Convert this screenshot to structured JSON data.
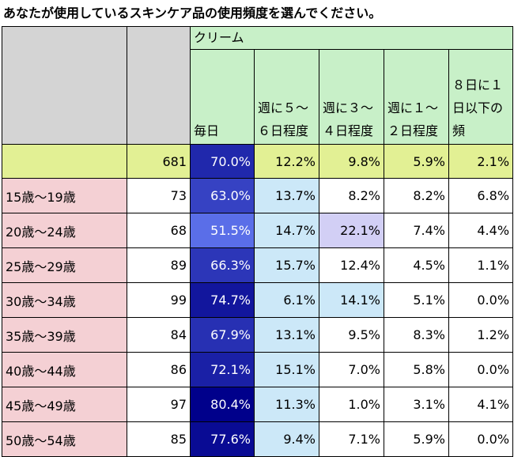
{
  "title": "あなたが使用しているスキンケア品の使用頻度を選んでください。",
  "group_header": "クリーム",
  "columns": [
    "毎日",
    "週に５～６日程度",
    "週に３～４日程度",
    "週に１～２日程度",
    "８日に１日以下の頻"
  ],
  "total": {
    "n": "681",
    "values": [
      "70.0%",
      "12.2%",
      "9.8%",
      "5.9%",
      "2.1%"
    ]
  },
  "rows": [
    {
      "label": "15歳～19歳",
      "n": "73",
      "values": [
        "63.0%",
        "13.7%",
        "8.2%",
        "8.2%",
        "6.8%"
      ]
    },
    {
      "label": "20歳～24歳",
      "n": "68",
      "values": [
        "51.5%",
        "14.7%",
        "22.1%",
        "7.4%",
        "4.4%"
      ]
    },
    {
      "label": "25歳～29歳",
      "n": "89",
      "values": [
        "66.3%",
        "15.7%",
        "12.4%",
        "4.5%",
        "1.1%"
      ]
    },
    {
      "label": "30歳～34歳",
      "n": "99",
      "values": [
        "74.7%",
        "6.1%",
        "14.1%",
        "5.1%",
        "0.0%"
      ]
    },
    {
      "label": "35歳～39歳",
      "n": "84",
      "values": [
        "67.9%",
        "13.1%",
        "9.5%",
        "8.3%",
        "1.2%"
      ]
    },
    {
      "label": "40歳～44歳",
      "n": "86",
      "values": [
        "72.1%",
        "15.1%",
        "7.0%",
        "5.8%",
        "0.0%"
      ]
    },
    {
      "label": "45歳～49歳",
      "n": "97",
      "values": [
        "80.4%",
        "11.3%",
        "1.0%",
        "3.1%",
        "4.1%"
      ]
    },
    {
      "label": "50歳～54歳",
      "n": "85",
      "values": [
        "77.6%",
        "9.4%",
        "7.1%",
        "5.9%",
        "0.0%"
      ]
    }
  ],
  "colors": {
    "header_bg": "#c8f0c8",
    "age_bg": "#f4d0d4",
    "total_bg": "#e2f094",
    "gray_bg": "#d4d4d4",
    "daily_dark": "#00008b",
    "daily_light": "#5a6ee8",
    "freq_light": "#cce8f8",
    "highlight_purple": "#d2cff5"
  }
}
